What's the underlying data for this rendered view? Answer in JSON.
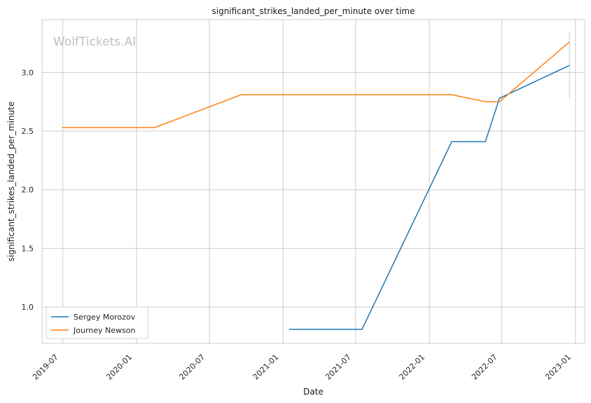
{
  "chart_data": {
    "type": "line",
    "title": "significant_strikes_landed_per_minute over time",
    "xlabel": "Date",
    "ylabel": "significant_strikes_landed_per_minute",
    "watermark": "WolfTickets.AI",
    "x_ticks": [
      "2019-07",
      "2020-01",
      "2020-07",
      "2021-01",
      "2021-07",
      "2022-01",
      "2022-07",
      "2023-01"
    ],
    "y_ticks": [
      "1.0",
      "1.5",
      "2.0",
      "2.5",
      "3.0"
    ],
    "ylim": [
      0.69,
      3.45
    ],
    "xlim": [
      "2019-05-10",
      "2023-01-24"
    ],
    "grid": true,
    "legend_position": "bottom-left",
    "series": [
      {
        "name": "Sergey Morozov",
        "color": "#1f77b4",
        "points": [
          {
            "x": "2021-01-16",
            "y": 0.81
          },
          {
            "x": "2021-07-17",
            "y": 0.81
          },
          {
            "x": "2022-02-26",
            "y": 2.41
          },
          {
            "x": "2022-05-21",
            "y": 2.41
          },
          {
            "x": "2022-06-25",
            "y": 2.78
          },
          {
            "x": "2022-12-17",
            "y": 3.06
          }
        ]
      },
      {
        "name": "Journey Newson",
        "color": "#ff7f0e",
        "points": [
          {
            "x": "2019-06-29",
            "y": 2.53
          },
          {
            "x": "2020-02-15",
            "y": 2.53
          },
          {
            "x": "2020-09-19",
            "y": 2.81
          },
          {
            "x": "2022-02-26",
            "y": 2.81
          },
          {
            "x": "2022-05-21",
            "y": 2.75
          },
          {
            "x": "2022-06-25",
            "y": 2.75
          },
          {
            "x": "2022-12-17",
            "y": 3.26
          }
        ]
      }
    ],
    "error_bar": {
      "x": "2022-12-17",
      "y_low": 2.78,
      "y_high": 3.34,
      "color": "#b9dcd8"
    }
  }
}
